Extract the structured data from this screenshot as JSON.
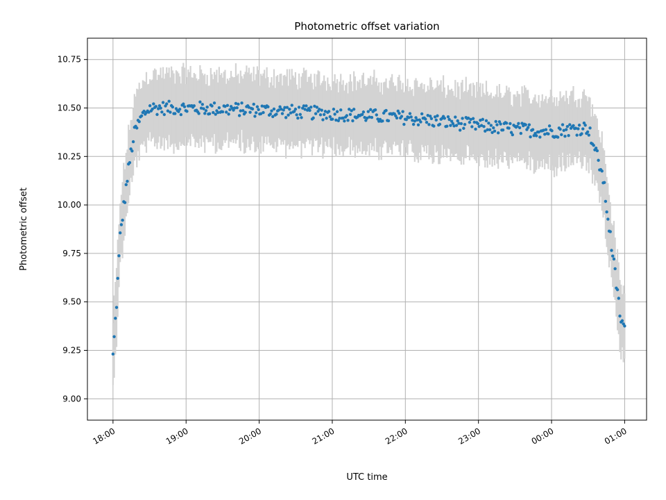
{
  "chart_data": {
    "type": "scatter",
    "title": "Photometric offset variation",
    "xlabel": "UTC time",
    "ylabel": "Photometric offset",
    "x_tick_labels": [
      "18:00",
      "19:00",
      "20:00",
      "21:00",
      "22:00",
      "23:00",
      "00:00",
      "01:00"
    ],
    "x_tick_hours": [
      0,
      1,
      2,
      3,
      4,
      5,
      6,
      7
    ],
    "y_ticks": [
      9.0,
      9.25,
      9.5,
      9.75,
      10.0,
      10.25,
      10.5,
      10.75
    ],
    "y_tick_labels": [
      "9.00",
      "9.25",
      "9.50",
      "9.75",
      "10.00",
      "10.25",
      "10.50",
      "10.75"
    ],
    "xlim_hours_after_1800": [
      -0.35,
      7.3
    ],
    "ylim": [
      8.89,
      10.86
    ],
    "grid": true,
    "legend": "none",
    "point_color": "#1f77b4",
    "errorbar_color": "#d3d3d3",
    "profile": {
      "description": "offset vs UTC hours after 18:00",
      "hours": [
        0.0,
        0.05,
        0.1,
        0.15,
        0.2,
        0.25,
        0.3,
        0.4,
        0.5,
        1.0,
        2.0,
        3.0,
        4.0,
        4.5,
        5.0,
        5.5,
        6.0,
        6.5,
        6.6,
        6.7,
        6.75,
        6.8,
        6.85,
        6.9,
        6.95,
        7.0
      ],
      "offsets": [
        9.22,
        9.5,
        9.85,
        10.0,
        10.15,
        10.28,
        10.38,
        10.46,
        10.5,
        10.5,
        10.49,
        10.47,
        10.45,
        10.43,
        10.41,
        10.39,
        10.38,
        10.4,
        10.28,
        10.15,
        10.0,
        9.85,
        9.7,
        9.55,
        9.4,
        9.37
      ],
      "error_halfwidth": 0.17
    },
    "n_points": 430
  }
}
